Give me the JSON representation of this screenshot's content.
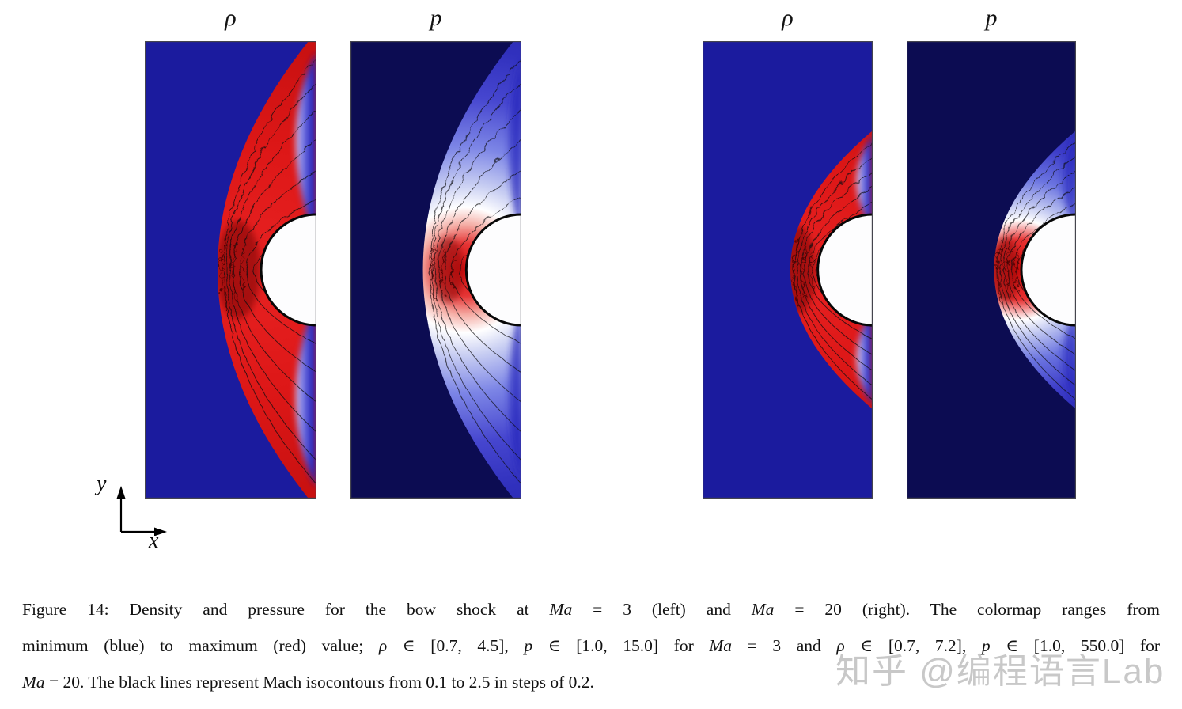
{
  "figure": {
    "panel_titles": [
      "ρ",
      "p",
      "ρ",
      "p"
    ],
    "axis": {
      "y_label": "y",
      "x_label": "x"
    },
    "colors": {
      "rho_background": "#1b1b9e",
      "p_background": "#0c0c52",
      "shock_red": "#d81818",
      "downstream_blue": "#2b2bc3",
      "body_fill": "#fdfdfe",
      "contour_line": "#111111",
      "watermark_gray": "#c8c8c8"
    }
  },
  "caption": {
    "lines": [
      [
        {
          "t": "Figure 14:  Density and pressure for the bow shock at ",
          "it": false
        },
        {
          "t": "Ma",
          "it": true
        },
        {
          "t": " = 3 (left) and ",
          "it": false
        },
        {
          "t": "Ma",
          "it": true
        },
        {
          "t": " = 20 (right).  The colormap ranges from",
          "it": false
        }
      ],
      [
        {
          "t": "minimum (blue) to maximum (red) value; ",
          "it": false
        },
        {
          "t": "ρ",
          "it": true
        },
        {
          "t": " ∈ [0.7, 4.5], ",
          "it": false
        },
        {
          "t": "p",
          "it": true
        },
        {
          "t": " ∈ [1.0, 15.0] for ",
          "it": false
        },
        {
          "t": "Ma",
          "it": true
        },
        {
          "t": " = 3 and ",
          "it": false
        },
        {
          "t": "ρ",
          "it": true
        },
        {
          "t": " ∈ [0.7, 7.2], ",
          "it": false
        },
        {
          "t": "p",
          "it": true
        },
        {
          "t": " ∈ [1.0, 550.0] for",
          "it": false
        }
      ],
      [
        {
          "t": "Ma",
          "it": true
        },
        {
          "t": " = 20.  The black lines represent Mach isocontours from 0.1 to 2.5 in steps of 0.2.",
          "it": false
        }
      ]
    ]
  },
  "watermark": {
    "text": "知乎 @编程语言Lab"
  }
}
